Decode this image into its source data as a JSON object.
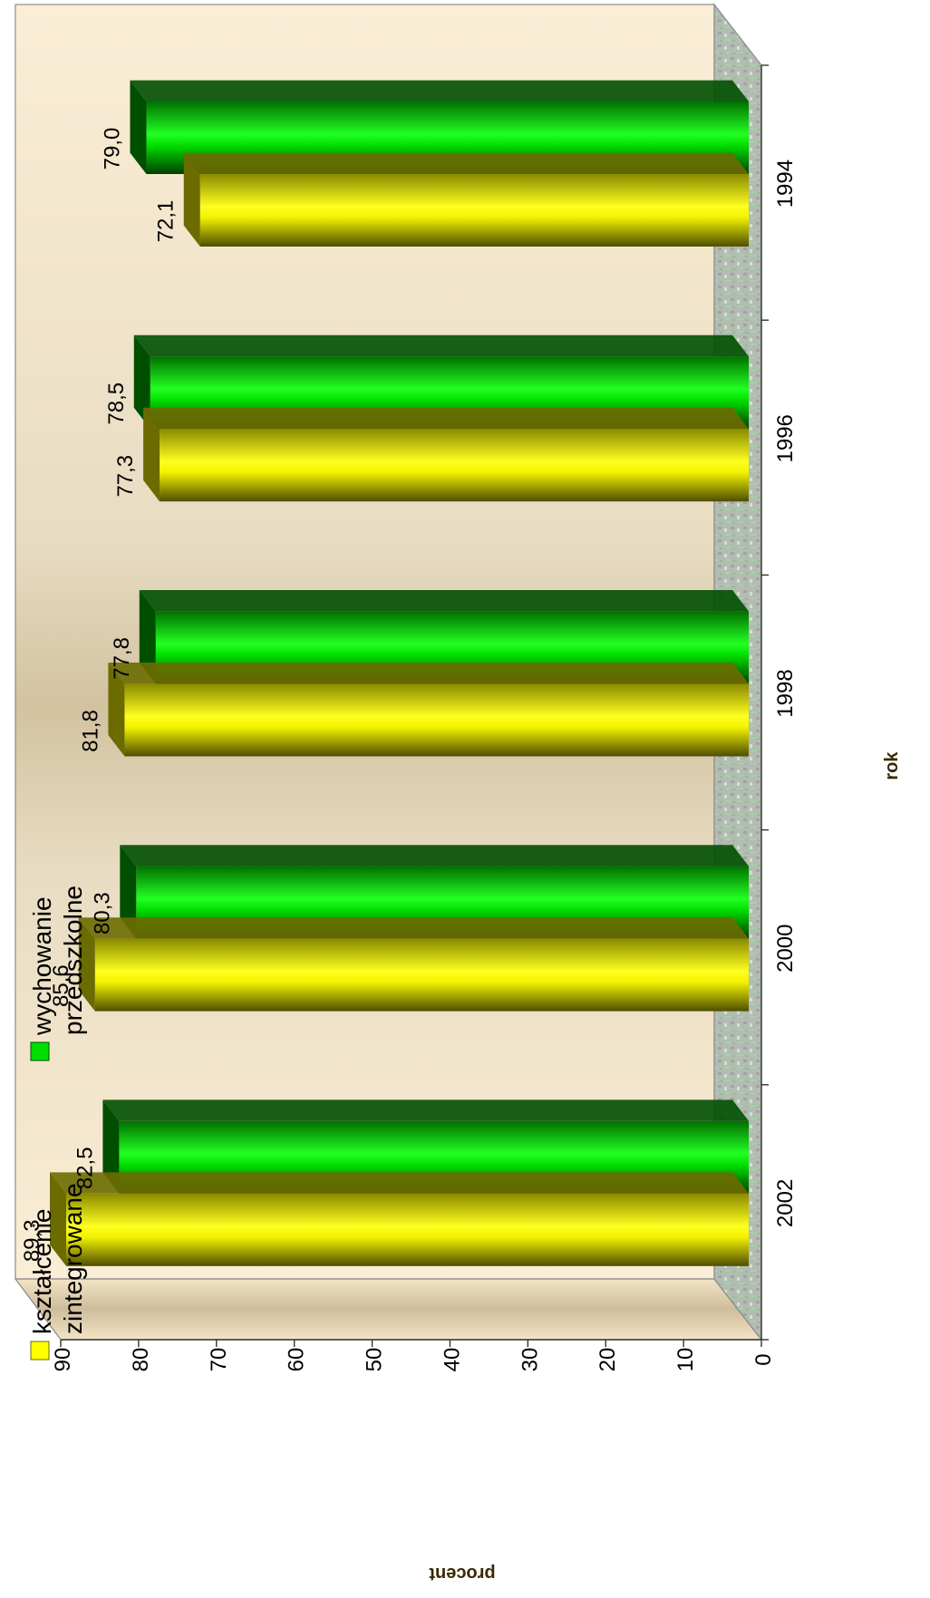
{
  "chart_data": {
    "type": "bar",
    "orientation": "rotated-90",
    "categories": [
      "1994",
      "1996",
      "1998",
      "2000",
      "2002"
    ],
    "series": [
      {
        "name": "kształcenie zintegrowane",
        "legend_lines": [
          "kształcenie",
          "zintegrowane"
        ],
        "values": [
          72.1,
          77.3,
          81.8,
          85.6,
          89.3
        ],
        "labels": [
          "72,1",
          "77,3",
          "81,8",
          "85,6",
          "89,3"
        ]
      },
      {
        "name": "wychowanie przedszkolne",
        "legend_lines": [
          "wychowanie",
          "przedszkolne"
        ],
        "values": [
          79.0,
          78.5,
          77.8,
          80.3,
          82.5
        ],
        "labels": [
          "79,0",
          "78,5",
          "77,8",
          "80,3",
          "82,5"
        ]
      }
    ],
    "value_axis": {
      "label": "procent",
      "min": 0,
      "max": 90,
      "ticks": [
        "0",
        "10",
        "20",
        "30",
        "40",
        "50",
        "60",
        "70",
        "80",
        "90"
      ]
    },
    "category_axis": {
      "label": "rok"
    },
    "grid": false,
    "legend_position": "top-left",
    "style": "3d",
    "colors": {
      "series1": "#ffff00",
      "series1_dark": "#6b6b00",
      "series2": "#00dd00",
      "series2_dark": "#004f00",
      "wall_light": "#fbeed6",
      "wall_dark": "#d6c7a5",
      "floor": "#b5c2b5"
    }
  }
}
